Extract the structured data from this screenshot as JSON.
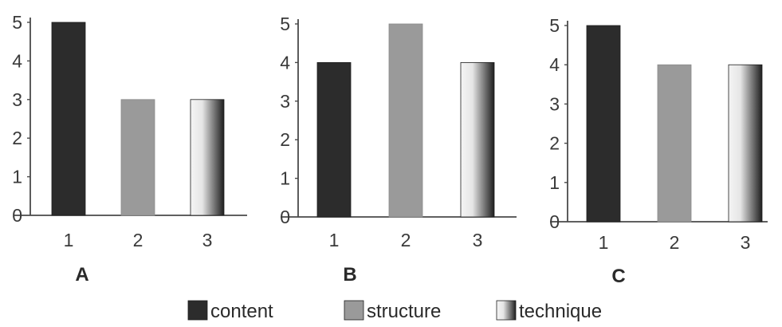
{
  "colors": {
    "content": "#2c2c2c",
    "structure": "#9a9a9a",
    "technique_light": "#f4f4f4",
    "technique_dark": "#1e1e1e",
    "axis": "#4a4a4a"
  },
  "legend": [
    {
      "label": "content",
      "key": "content"
    },
    {
      "label": "structure",
      "key": "structure"
    },
    {
      "label": "technique",
      "key": "technique"
    }
  ],
  "chart_data": [
    {
      "type": "bar",
      "title": "A",
      "categories": [
        "1",
        "2",
        "3"
      ],
      "series": [
        {
          "values": [
            5,
            3,
            3
          ]
        }
      ],
      "bar_styles": [
        "content",
        "structure",
        "technique"
      ],
      "yticks": [
        0,
        1,
        2,
        3,
        4,
        5
      ],
      "ylim": [
        0,
        5
      ],
      "xlabel": "",
      "ylabel": "",
      "grid": false,
      "legend_position": "bottom"
    },
    {
      "type": "bar",
      "title": "B",
      "categories": [
        "1",
        "2",
        "3"
      ],
      "series": [
        {
          "values": [
            4,
            5,
            4
          ]
        }
      ],
      "bar_styles": [
        "content",
        "structure",
        "technique"
      ],
      "yticks": [
        0,
        1,
        2,
        3,
        4,
        5
      ],
      "ylim": [
        0,
        5
      ],
      "xlabel": "",
      "ylabel": "",
      "grid": false,
      "legend_position": "bottom"
    },
    {
      "type": "bar",
      "title": "C",
      "categories": [
        "1",
        "2",
        "3"
      ],
      "series": [
        {
          "values": [
            5,
            4,
            4
          ]
        }
      ],
      "bar_styles": [
        "content",
        "structure",
        "technique"
      ],
      "yticks": [
        0,
        1,
        2,
        3,
        4,
        5
      ],
      "ylim": [
        0,
        5
      ],
      "xlabel": "",
      "ylabel": "",
      "grid": false,
      "legend_position": "bottom"
    }
  ]
}
